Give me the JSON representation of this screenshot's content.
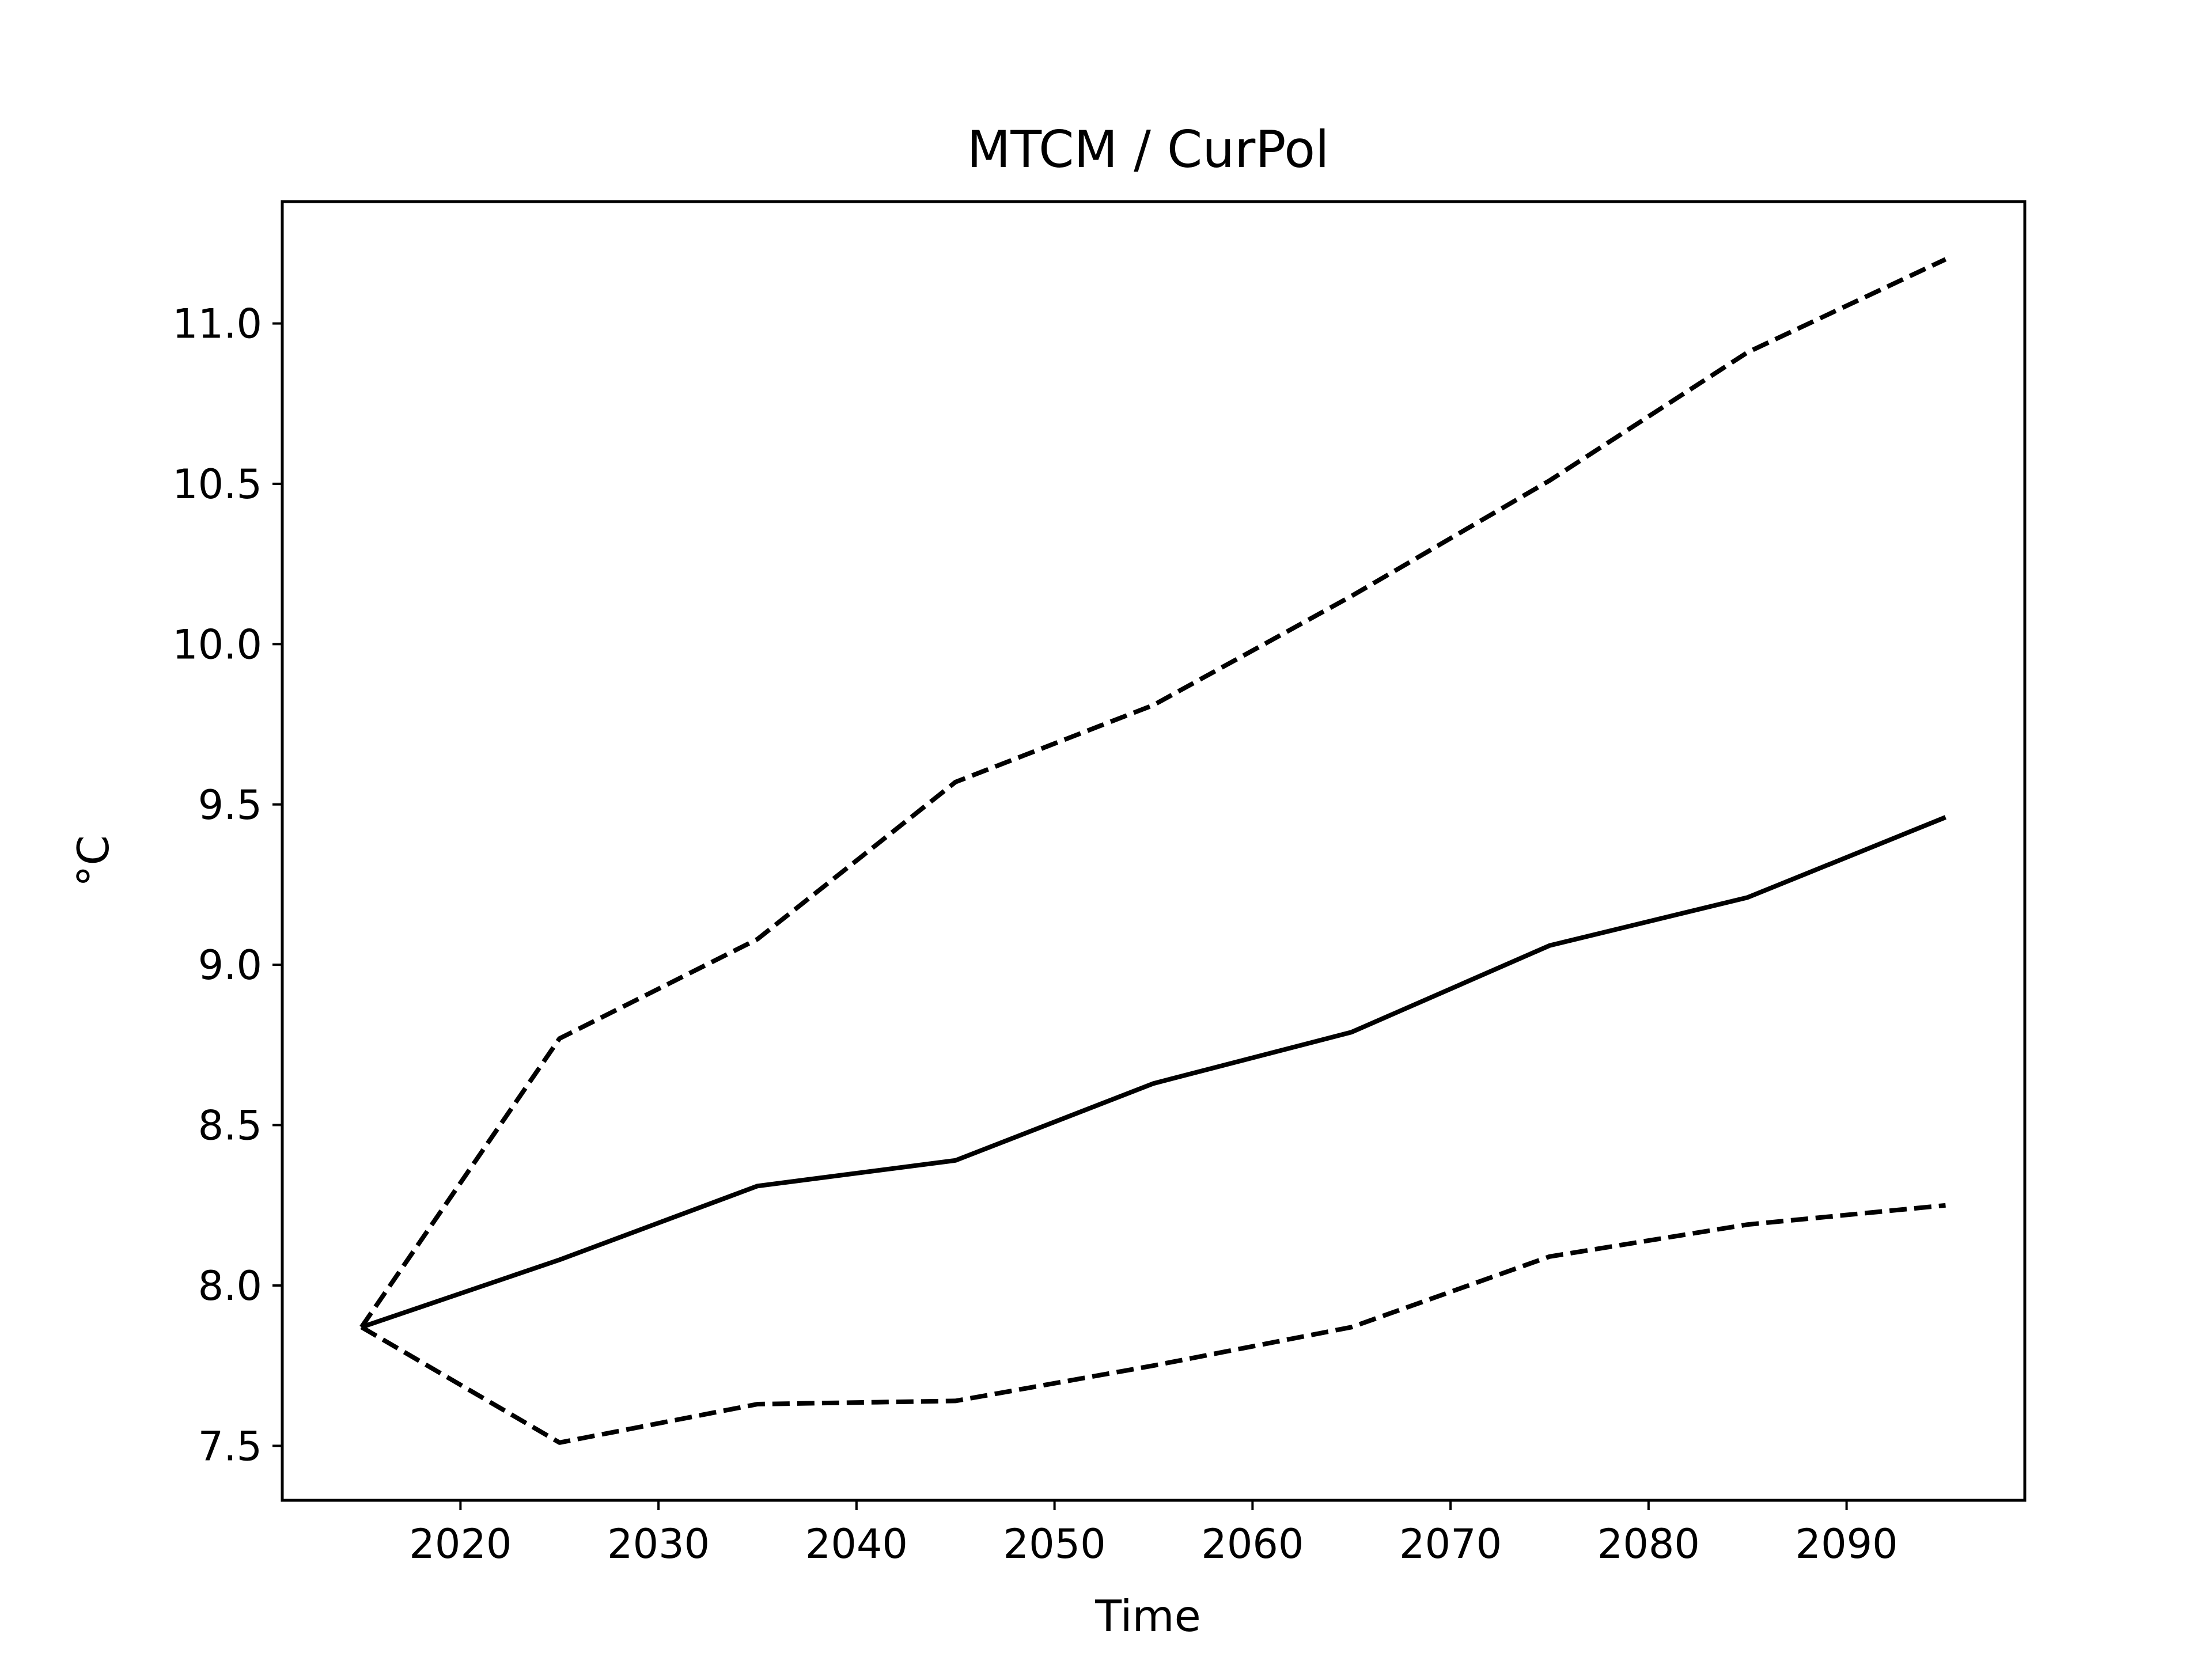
{
  "chart_data": {
    "type": "line",
    "title": "MTCM / CurPol",
    "xlabel": "Time",
    "ylabel": "°C",
    "x": [
      2015,
      2025,
      2035,
      2045,
      2055,
      2065,
      2075,
      2085,
      2095
    ],
    "series": [
      {
        "style": "solid",
        "values": [
          7.87,
          8.08,
          8.31,
          8.39,
          8.63,
          8.79,
          9.06,
          9.21,
          9.46
        ]
      },
      {
        "style": "dashed",
        "values": [
          7.87,
          8.77,
          9.08,
          9.57,
          9.81,
          10.15,
          10.51,
          10.91,
          11.2
        ]
      },
      {
        "style": "dashed",
        "values": [
          7.87,
          7.51,
          7.63,
          7.64,
          7.75,
          7.87,
          8.09,
          8.19,
          8.25
        ]
      }
    ],
    "xlim": [
      2011,
      2099
    ],
    "ylim": [
      7.33,
      11.38
    ],
    "xticks": [
      {
        "value": 2020,
        "label": "2020"
      },
      {
        "value": 2030,
        "label": "2030"
      },
      {
        "value": 2040,
        "label": "2040"
      },
      {
        "value": 2050,
        "label": "2050"
      },
      {
        "value": 2060,
        "label": "2060"
      },
      {
        "value": 2070,
        "label": "2070"
      },
      {
        "value": 2080,
        "label": "2080"
      },
      {
        "value": 2090,
        "label": "2090"
      }
    ],
    "yticks": [
      {
        "value": 7.5,
        "label": "7.5"
      },
      {
        "value": 8.0,
        "label": "8.0"
      },
      {
        "value": 8.5,
        "label": "8.5"
      },
      {
        "value": 9.0,
        "label": "9.0"
      },
      {
        "value": 9.5,
        "label": "9.5"
      },
      {
        "value": 10.0,
        "label": "10.0"
      },
      {
        "value": 10.5,
        "label": "10.5"
      },
      {
        "value": 11.0,
        "label": "11.0"
      }
    ],
    "grid": false,
    "legend": "none",
    "colors": {
      "line": "#000000",
      "frame": "#000000",
      "background": "#ffffff"
    }
  }
}
